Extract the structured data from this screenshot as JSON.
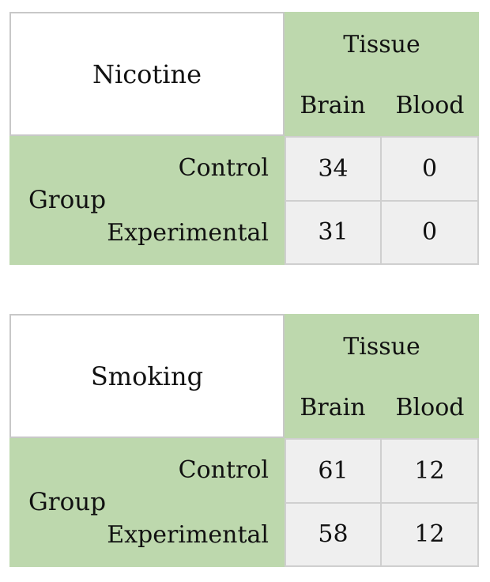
{
  "tables": [
    {
      "title": "Nicotine",
      "column_group_label": "Tissue",
      "columns": [
        "Brain",
        "Blood"
      ],
      "row_group_label": "Group",
      "rows": [
        {
          "label": "Control",
          "values": [
            "34",
            "0"
          ]
        },
        {
          "label": "Experimental",
          "values": [
            "31",
            "0"
          ]
        }
      ]
    },
    {
      "title": "Smoking",
      "column_group_label": "Tissue",
      "columns": [
        "Brain",
        "Blood"
      ],
      "row_group_label": "Group",
      "rows": [
        {
          "label": "Control",
          "values": [
            "61",
            "12"
          ]
        },
        {
          "label": "Experimental",
          "values": [
            "58",
            "12"
          ]
        }
      ]
    }
  ],
  "colors": {
    "header_fill": "#bdd8ad",
    "value_fill": "#efefef",
    "border": "#cfcfcf"
  }
}
